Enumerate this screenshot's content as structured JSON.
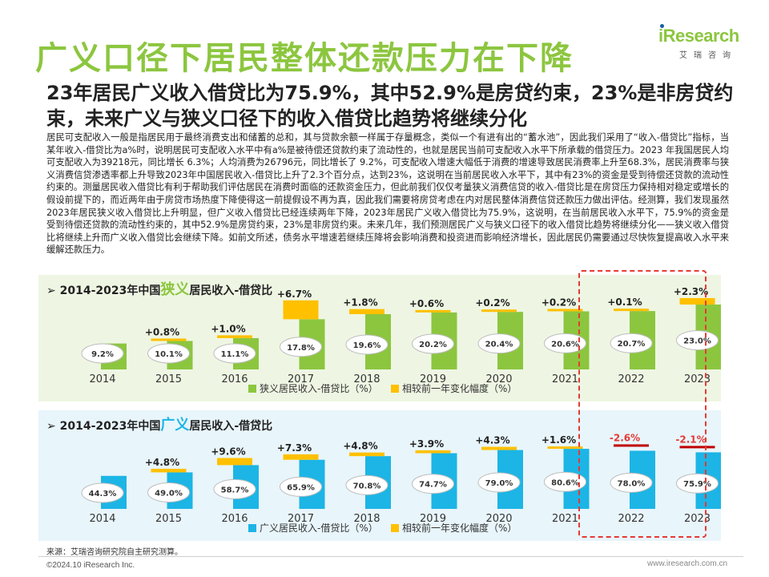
{
  "header": {
    "title": "广义口径下居民整体还款压力在下降",
    "subtitle": "23年居民广义收入借贷比为75.9%，其中52.9%是房贷约束，23%是非房贷约束，未来广义与狭义口径下的收入借贷比趋势将继续分化"
  },
  "logo": {
    "main": "iResearch",
    "sub": "艾瑞咨询"
  },
  "paragraph": "居民可支配收入一般是指居民用于最终消费支出和储蓄的总和，其与贷款余额一样属于存量概念，类似一个有进有出的“蓄水池”，因此我们采用了“收入-借贷比”指标，当某年收入-借贷比为a%时，说明居民可支配收入水平中有a%是被待偿还贷款约束了流动性的，也就是居民当前可支配收入水平下所承载的借贷压力。2023 年我国居民人均可支配收入为39218元，同比增长 6.3%；人均消费为26796元，同比增长了 9.2%，可支配收入增速大幅低于消费的增速导致居民消费率上升至68.3%，居民消费率与狭义消费信贷渗透率都上升导致2023年中国居民收入-借贷比上升了2.3个百分点，达到23%，这说明在当前居民收入水平下，其中有23%的资金是受到待偿还贷款的流动性约束的。测量居民收入借贷比有利于帮助我们评估居民在消费时面临的还款资金压力，但此前我们仅仅考量狭义消费信贷的收入-借贷比是在房贷压力保持相对稳定或增长的假设前提下的，而近两年由于房贷市场热度下降使得这一前提假设不再为真，因此我们需要将房贷考虑在内对居民整体消费信贷还款压力做出评估。经测算，我们发现虽然2023年居民狭义收入借贷比上升明显，但广义收入借贷比已经连续两年下降，2023年居民广义收入借贷比为75.9%，这说明，在当前居民收入水平下，75.9%的资金是受到待偿还贷款的流动性约束的，其中52.9%是房贷约束，23%是非房贷约束。未来几年，我们预测居民广义与狭义口径下的收入借贷比趋势将继续分化——狭义收入借贷比将继续上升而广义收入借贷比会继续下降。如前文所述，债务水平增速若继续压降将会影响消费和投资进而影响经济增长，因此居民仍需要通过尽快恢复提高收入水平来缓解还款压力。",
  "chart_data": [
    {
      "type": "bar",
      "title_prefix": "2014-2023年中国",
      "title_highlight": "狭义",
      "title_suffix": "居民收入-借贷比",
      "categories": [
        "2014",
        "2015",
        "2016",
        "2017",
        "2018",
        "2019",
        "2020",
        "2021",
        "2022",
        "2023"
      ],
      "series": [
        {
          "name": "狭义居民收入-借贷比（%）",
          "values": [
            9.2,
            10.1,
            11.1,
            17.8,
            19.6,
            20.2,
            20.4,
            20.6,
            20.7,
            23.0
          ],
          "labels": [
            "9.2%",
            "10.1%",
            "11.1%",
            "17.8%",
            "19.6%",
            "20.2%",
            "20.4%",
            "20.6%",
            "20.7%",
            "23.0%"
          ]
        },
        {
          "name": "相较前一年变化幅度（%）",
          "values": [
            null,
            0.8,
            1.0,
            6.7,
            1.8,
            0.6,
            0.2,
            0.2,
            0.1,
            2.3
          ],
          "labels": [
            "",
            "+0.8%",
            "+1.0%",
            "+6.7%",
            "+1.8%",
            "+0.6%",
            "+0.2%",
            "+0.2%",
            "+0.1%",
            "+2.3%"
          ]
        }
      ],
      "ylim": [
        0,
        25
      ],
      "bar_color": "#8cc63f",
      "change_color": "#ffc000",
      "negative_color": "#c00000"
    },
    {
      "type": "bar",
      "title_prefix": "2014-2023年中国",
      "title_highlight": "广义",
      "title_suffix": "居民收入-借贷比",
      "categories": [
        "2014",
        "2015",
        "2016",
        "2017",
        "2018",
        "2019",
        "2020",
        "2021",
        "2022",
        "2023"
      ],
      "series": [
        {
          "name": "广义居民收入-借贷比（%）",
          "values": [
            44.3,
            49.0,
            58.7,
            65.9,
            70.8,
            74.7,
            79.0,
            80.6,
            78.0,
            75.9
          ],
          "labels": [
            "44.3%",
            "49.0%",
            "58.7%",
            "65.9%",
            "70.8%",
            "74.7%",
            "79.0%",
            "80.6%",
            "78.0%",
            "75.9%"
          ]
        },
        {
          "name": "相较前一年变化幅度（%）",
          "values": [
            null,
            4.8,
            9.6,
            7.3,
            4.8,
            3.9,
            4.3,
            1.6,
            -2.6,
            -2.1
          ],
          "labels": [
            "",
            "+4.8%",
            "+9.6%",
            "+7.3%",
            "+4.8%",
            "+3.9%",
            "+4.3%",
            "+1.6%",
            "-2.6%",
            "-2.1%"
          ]
        }
      ],
      "ylim": [
        0,
        100
      ],
      "bar_color": "#1cb5e6",
      "change_color": "#ffc000",
      "negative_color": "#c00000"
    }
  ],
  "footer": {
    "source": "来源：艾瑞咨询研究院自主研究测算。",
    "copyright": "©2024.10 iResearch Inc.",
    "url": "www.iresearch.com.cn"
  }
}
